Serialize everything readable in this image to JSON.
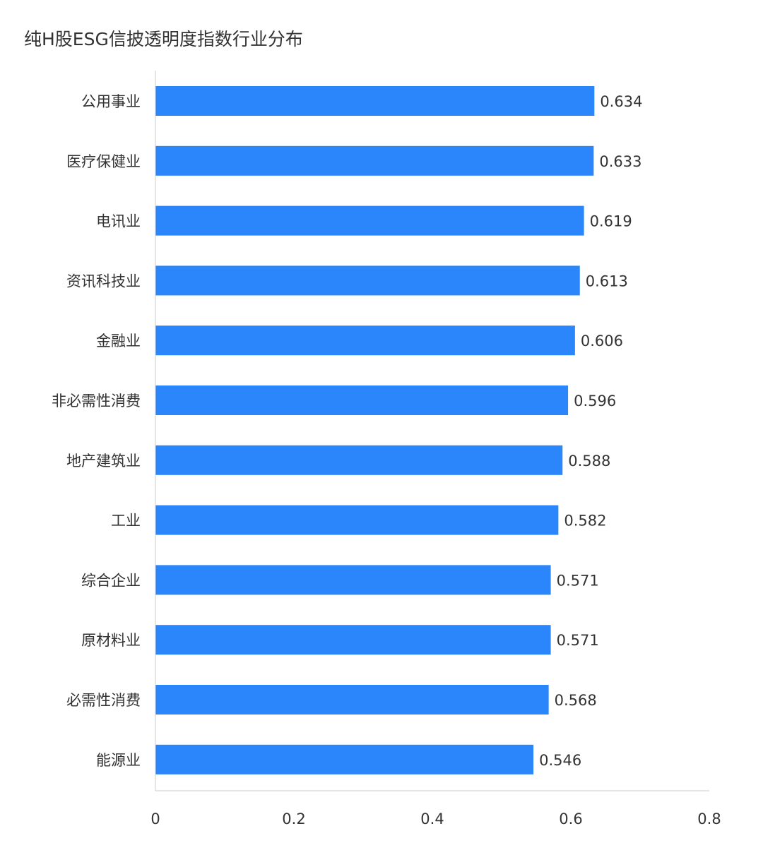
{
  "chart_data": {
    "type": "bar",
    "orientation": "horizontal",
    "title": "纯H股ESG信披透明度指数行业分布",
    "categories": [
      "公用事业",
      "医疗保健业",
      "电讯业",
      "资讯科技业",
      "金融业",
      "非必需性消费",
      "地产建筑业",
      "工业",
      "综合企业",
      "原材料业",
      "必需性消费",
      "能源业"
    ],
    "values": [
      0.634,
      0.633,
      0.619,
      0.613,
      0.606,
      0.596,
      0.588,
      0.582,
      0.571,
      0.571,
      0.568,
      0.546
    ],
    "value_labels": [
      "0.634",
      "0.633",
      "0.619",
      "0.613",
      "0.606",
      "0.596",
      "0.588",
      "0.582",
      "0.571",
      "0.571",
      "0.568",
      "0.546"
    ],
    "x_ticks": [
      "0",
      "0.2",
      "0.4",
      "0.6",
      "0.8"
    ],
    "xlim": [
      0,
      0.8
    ],
    "xlabel": "",
    "ylabel": "",
    "grid": false,
    "legend": "none",
    "bar_color": "#2b86fb"
  }
}
